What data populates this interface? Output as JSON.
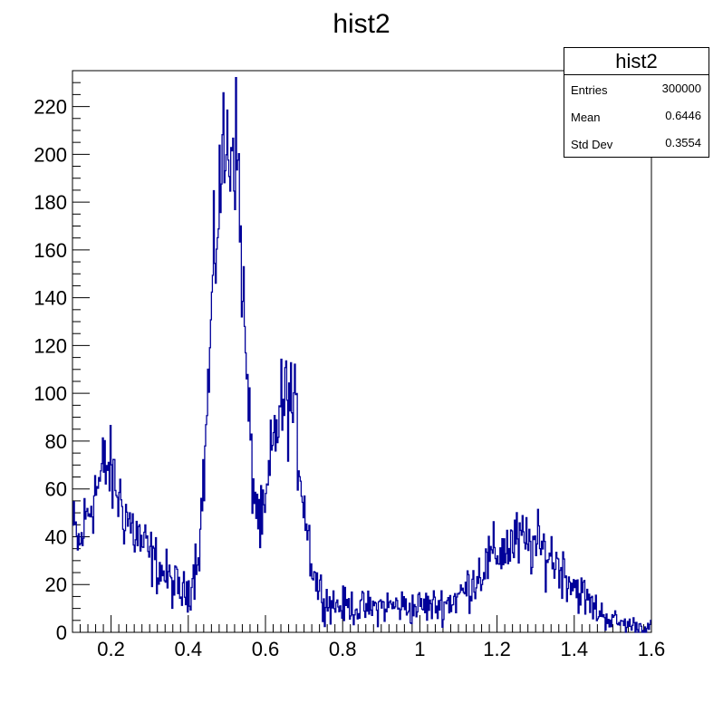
{
  "chart_data": {
    "type": "histogram",
    "title": "hist2",
    "xlim": [
      0.1,
      1.6
    ],
    "ylim": [
      0,
      235
    ],
    "x_ticks": [
      {
        "value": 0.2,
        "label": "0.2"
      },
      {
        "value": 0.4,
        "label": "0.4"
      },
      {
        "value": 0.6,
        "label": "0.6"
      },
      {
        "value": 0.8,
        "label": "0.8"
      },
      {
        "value": 1.0,
        "label": "1"
      },
      {
        "value": 1.2,
        "label": "1.2"
      },
      {
        "value": 1.4,
        "label": "1.4"
      },
      {
        "value": 1.6,
        "label": "1.6"
      }
    ],
    "y_ticks": [
      {
        "value": 0,
        "label": "0"
      },
      {
        "value": 20,
        "label": "20"
      },
      {
        "value": 40,
        "label": "40"
      },
      {
        "value": 60,
        "label": "60"
      },
      {
        "value": 80,
        "label": "80"
      },
      {
        "value": 100,
        "label": "100"
      },
      {
        "value": 120,
        "label": "120"
      },
      {
        "value": 140,
        "label": "140"
      },
      {
        "value": 160,
        "label": "160"
      },
      {
        "value": 180,
        "label": "180"
      },
      {
        "value": 200,
        "label": "200"
      },
      {
        "value": 220,
        "label": "220"
      }
    ],
    "line_color": "#000099",
    "series": [
      {
        "x": [
          0.1,
          0.11,
          0.12,
          0.13,
          0.14,
          0.15,
          0.16,
          0.17,
          0.18,
          0.19,
          0.2,
          0.21,
          0.22,
          0.23,
          0.24,
          0.25,
          0.26,
          0.27,
          0.28,
          0.29,
          0.3,
          0.31,
          0.32,
          0.33,
          0.34,
          0.35,
          0.36,
          0.37,
          0.38,
          0.39,
          0.4,
          0.41,
          0.42,
          0.43,
          0.44,
          0.45,
          0.46,
          0.47,
          0.48,
          0.49,
          0.5,
          0.51,
          0.52,
          0.53,
          0.54,
          0.55,
          0.56,
          0.57,
          0.58,
          0.59,
          0.6,
          0.61,
          0.62,
          0.63,
          0.64,
          0.65,
          0.66,
          0.67,
          0.68,
          0.69,
          0.7,
          0.71,
          0.72,
          0.73,
          0.74,
          0.75,
          0.76,
          0.77,
          0.78,
          0.79,
          0.8,
          0.82,
          0.84,
          0.86,
          0.88,
          0.9,
          0.92,
          0.94,
          0.96,
          0.98,
          1.0,
          1.02,
          1.04,
          1.06,
          1.08,
          1.1,
          1.12,
          1.14,
          1.16,
          1.18,
          1.2,
          1.22,
          1.24,
          1.26,
          1.28,
          1.3,
          1.32,
          1.34,
          1.36,
          1.38,
          1.4,
          1.42,
          1.44,
          1.46,
          1.48,
          1.5,
          1.52,
          1.54,
          1.56,
          1.58,
          1.6
        ],
        "y": [
          44,
          40,
          35,
          45,
          50,
          55,
          60,
          62,
          68,
          70,
          66,
          62,
          57,
          52,
          49,
          45,
          42,
          40,
          37,
          35,
          32,
          30,
          28,
          26,
          24,
          22,
          20,
          19,
          17,
          16,
          18,
          22,
          30,
          40,
          65,
          95,
          130,
          160,
          185,
          198,
          200,
          205,
          210,
          190,
          150,
          110,
          80,
          60,
          50,
          43,
          50,
          65,
          78,
          88,
          93,
          96,
          98,
          95,
          85,
          70,
          55,
          42,
          30,
          22,
          18,
          15,
          13,
          12,
          12,
          11,
          11,
          11,
          10,
          10,
          10,
          11,
          11,
          11,
          11,
          10,
          11,
          11,
          11,
          12,
          13,
          15,
          18,
          22,
          26,
          30,
          33,
          35,
          37,
          38,
          37,
          36,
          34,
          32,
          28,
          24,
          20,
          16,
          12,
          9,
          7,
          5,
          4,
          3,
          3,
          2,
          2
        ]
      }
    ]
  },
  "stats": {
    "title": "hist2",
    "rows": [
      {
        "key": "Entries",
        "value": "300000"
      },
      {
        "key": "Mean",
        "value": "0.6446"
      },
      {
        "key": "Std Dev",
        "value": "0.3554"
      }
    ]
  }
}
